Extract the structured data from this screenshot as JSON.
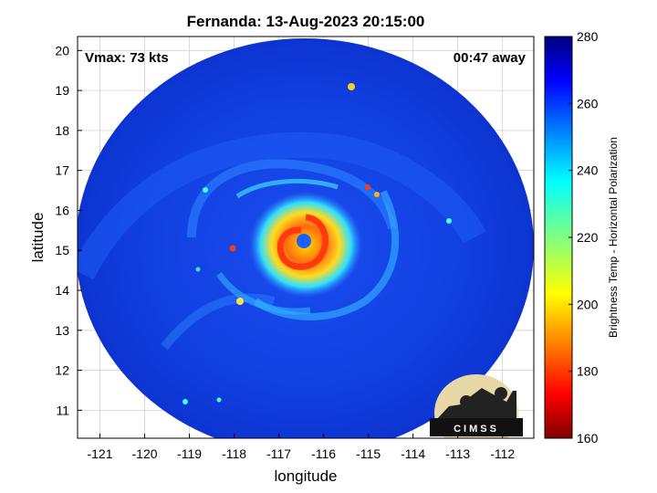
{
  "title": "Fernanda: 13-Aug-2023 20:15:00",
  "vmax": "Vmax: 73 kts",
  "time_away": "00:47 away",
  "logo_text": "CIMSS",
  "chart_data": {
    "type": "heatmap",
    "xlabel": "longitude",
    "ylabel": "latitude",
    "xlim": [
      -121.5,
      -111.3
    ],
    "ylim": [
      10.3,
      20.35
    ],
    "xticks": [
      -121,
      -120,
      -119,
      -118,
      -117,
      -116,
      -115,
      -114,
      -113,
      -112
    ],
    "yticks": [
      11,
      12,
      13,
      14,
      15,
      16,
      17,
      18,
      19,
      20
    ],
    "grid": true,
    "storm_center": [
      -116.05,
      15.4
    ],
    "colorbar": {
      "label": "Brightness Temp - Horizontal Polarization",
      "min": 160,
      "max": 280,
      "ticks": [
        160,
        180,
        200,
        220,
        240,
        260,
        280
      ],
      "colormap": "jet"
    },
    "background_value": 262
  },
  "colors": {
    "swath_blue": "#1040e0",
    "band_light": "#2a80ff",
    "eyewall_warm": "#ff5a1a",
    "axes": "#000000",
    "grid": "#cccccc"
  }
}
